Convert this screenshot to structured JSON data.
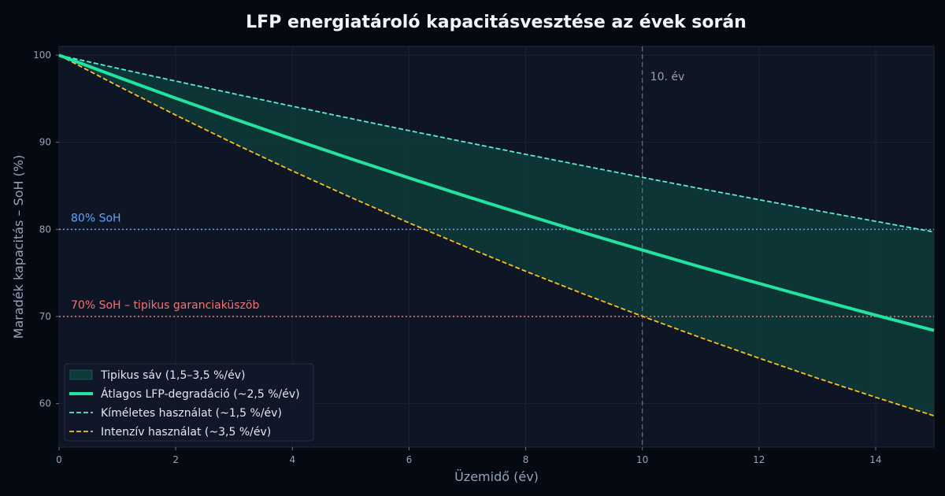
{
  "chart_data": {
    "type": "line",
    "title": "LFP energiatároló kapacitásvesztése az évek során",
    "xlabel": "Üzemidő (év)",
    "ylabel": "Maradék kapacitás – SoH (%)",
    "xlim": [
      0,
      15
    ],
    "ylim": [
      55,
      101
    ],
    "x_ticks": [
      0,
      2,
      4,
      6,
      8,
      10,
      12,
      14
    ],
    "y_ticks": [
      60,
      70,
      80,
      90,
      100
    ],
    "grid": true,
    "legend_position": "bottom-left",
    "band": {
      "name": "Tipikus sáv (1,5–3,5 %/év)",
      "color": "#0d3b3a",
      "x": [
        0,
        1,
        2,
        3,
        4,
        5,
        6,
        7,
        8,
        9,
        10,
        11,
        12,
        13,
        14,
        15
      ],
      "lower": [
        100,
        96.5,
        93.12,
        89.86,
        86.71,
        83.68,
        80.75,
        77.93,
        75.2,
        72.57,
        70.03,
        67.58,
        65.22,
        62.93,
        60.73,
        58.61
      ],
      "upper": [
        100,
        98.5,
        97.02,
        95.57,
        94.14,
        92.73,
        91.34,
        89.97,
        88.62,
        87.29,
        85.97,
        84.68,
        83.41,
        82.16,
        80.93,
        79.71
      ]
    },
    "series": [
      {
        "name": "Átlagos LFP-degradáció (~2,5 %/év)",
        "color": "#22e3a0",
        "style": "solid",
        "x": [
          0,
          1,
          2,
          3,
          4,
          5,
          6,
          7,
          8,
          9,
          10,
          11,
          12,
          13,
          14,
          15
        ],
        "values": [
          100,
          97.5,
          95.06,
          92.69,
          90.37,
          88.11,
          85.91,
          83.76,
          81.67,
          79.62,
          77.63,
          75.69,
          73.8,
          71.95,
          70.16,
          68.4
        ]
      },
      {
        "name": "Kíméletes használat (~1,5 %/év)",
        "color": "#5eead4",
        "style": "dashed",
        "x": [
          0,
          1,
          2,
          3,
          4,
          5,
          6,
          7,
          8,
          9,
          10,
          11,
          12,
          13,
          14,
          15
        ],
        "values": [
          100,
          98.5,
          97.02,
          95.57,
          94.14,
          92.73,
          91.34,
          89.97,
          88.62,
          87.29,
          85.97,
          84.68,
          83.41,
          82.16,
          80.93,
          79.71
        ]
      },
      {
        "name": "Intenzív használat (~3,5 %/év)",
        "color": "#fbbf24",
        "style": "dashed",
        "x": [
          0,
          1,
          2,
          3,
          4,
          5,
          6,
          7,
          8,
          9,
          10,
          11,
          12,
          13,
          14,
          15
        ],
        "values": [
          100,
          96.5,
          93.12,
          89.86,
          86.71,
          83.68,
          80.75,
          77.93,
          75.2,
          72.57,
          70.03,
          67.58,
          65.22,
          62.93,
          60.73,
          58.61
        ]
      }
    ],
    "reference_lines": [
      {
        "axis": "y",
        "value": 80,
        "label": "80% SoH",
        "color": "#60a5fa"
      },
      {
        "axis": "y",
        "value": 70,
        "label": "70% SoH – tipikus garanciaküszöb",
        "color": "#f87171"
      },
      {
        "axis": "x",
        "value": 10,
        "label": "10. év",
        "color": "#64748b"
      }
    ]
  }
}
